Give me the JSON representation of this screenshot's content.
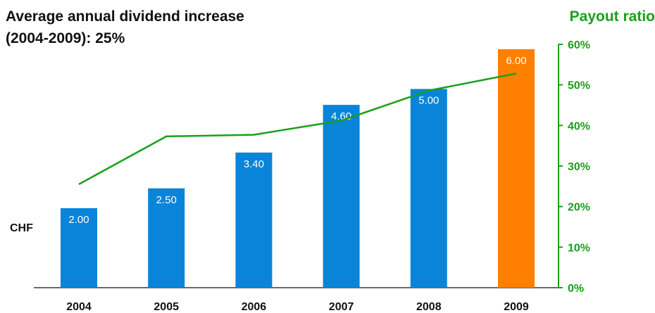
{
  "colors": {
    "bar": "#0a84d8",
    "highlight": "#ff7f00",
    "payout": "#19a019",
    "axis": "#111111"
  },
  "header": {
    "title_line1": "Average annual dividend increase",
    "title_line2": "(2004-2009): 25%",
    "right_title": "Payout ratio",
    "unit": "CHF"
  },
  "chart_data": {
    "type": "bar",
    "categories": [
      "2004",
      "2005",
      "2006",
      "2007",
      "2008",
      "2009"
    ],
    "series": [
      {
        "values": [
          2.0,
          2.5,
          3.4,
          4.6,
          5.0,
          6.0
        ],
        "labels": [
          "2.00",
          "2.50",
          "3.40",
          "4.60",
          "5.00",
          "6.00"
        ]
      },
      {
        "name": "Payout ratio",
        "type": "line",
        "axis": "right",
        "values": [
          25.5,
          37.3,
          37.7,
          41.2,
          48.6,
          52.8
        ]
      }
    ],
    "y_left_lim": [
      0,
      7
    ],
    "y_right_lim": [
      0,
      60
    ],
    "y_right_ticks": [
      "0%",
      "10%",
      "20%",
      "30%",
      "40%",
      "50%",
      "60%"
    ],
    "highlight_category": "2009"
  }
}
